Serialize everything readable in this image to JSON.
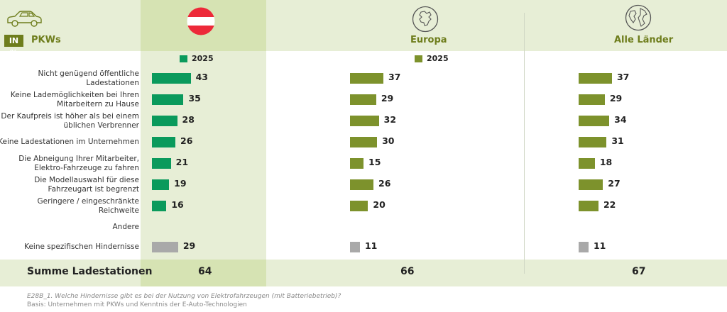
{
  "header": {
    "unit_badge": "IN %",
    "subject": "PKWs",
    "columns": [
      {
        "label": "",
        "icon": "austria-flag-icon"
      },
      {
        "label": "Europa",
        "icon": "europe-map-icon"
      },
      {
        "label": "Alle Länder",
        "icon": "globe-icon"
      }
    ]
  },
  "legend": {
    "label": "2025"
  },
  "colors": {
    "austria": "#0a9a5c",
    "europa": "#7d922c",
    "neutral": "#a9a9a9",
    "band": "#e7eed6",
    "highlight": "#d6e3b3"
  },
  "chart_data": {
    "type": "bar",
    "orientation": "horizontal",
    "categories": [
      [
        "Nicht genügend öffentliche",
        "Ladestationen"
      ],
      [
        "Keine Lademöglichkeiten bei Ihren",
        "Mitarbeitern zu Hause"
      ],
      [
        "Der Kaufpreis ist höher als bei einem",
        "üblichen Verbrenner"
      ],
      [
        "Keine Ladestationen im Unternehmen"
      ],
      [
        "Die Abneigung Ihrer Mitarbeiter,",
        "Elektro-Fahrzeuge zu fahren"
      ],
      [
        "Die Modellauswahl für diese",
        "Fahrzeugart ist begrenzt"
      ],
      [
        "Geringere / eingeschränkte",
        "Reichweite"
      ],
      [
        "Andere"
      ],
      [
        "Keine spezifischen Hindernisse"
      ]
    ],
    "series": [
      {
        "name": "2025",
        "values": [
          43,
          35,
          28,
          26,
          21,
          19,
          16,
          null,
          29
        ]
      },
      {
        "name": "2025",
        "values": [
          37,
          29,
          32,
          30,
          15,
          26,
          20,
          null,
          11
        ]
      },
      {
        "name": "2025",
        "values": [
          37,
          29,
          34,
          31,
          18,
          27,
          22,
          null,
          11
        ]
      }
    ],
    "neutral_category_index": 8
  },
  "summary": {
    "label": "Summe Ladestationen",
    "values": [
      "64",
      "66",
      "67"
    ]
  },
  "footnote": {
    "question": "E28B_1. Welche Hindernisse gibt es bei der Nutzung von Elektrofahrzeugen (mit Batteriebetrieb)?",
    "basis": "Basis: Unternehmen mit PKWs und Kenntnis der E-Auto-Technologien"
  }
}
